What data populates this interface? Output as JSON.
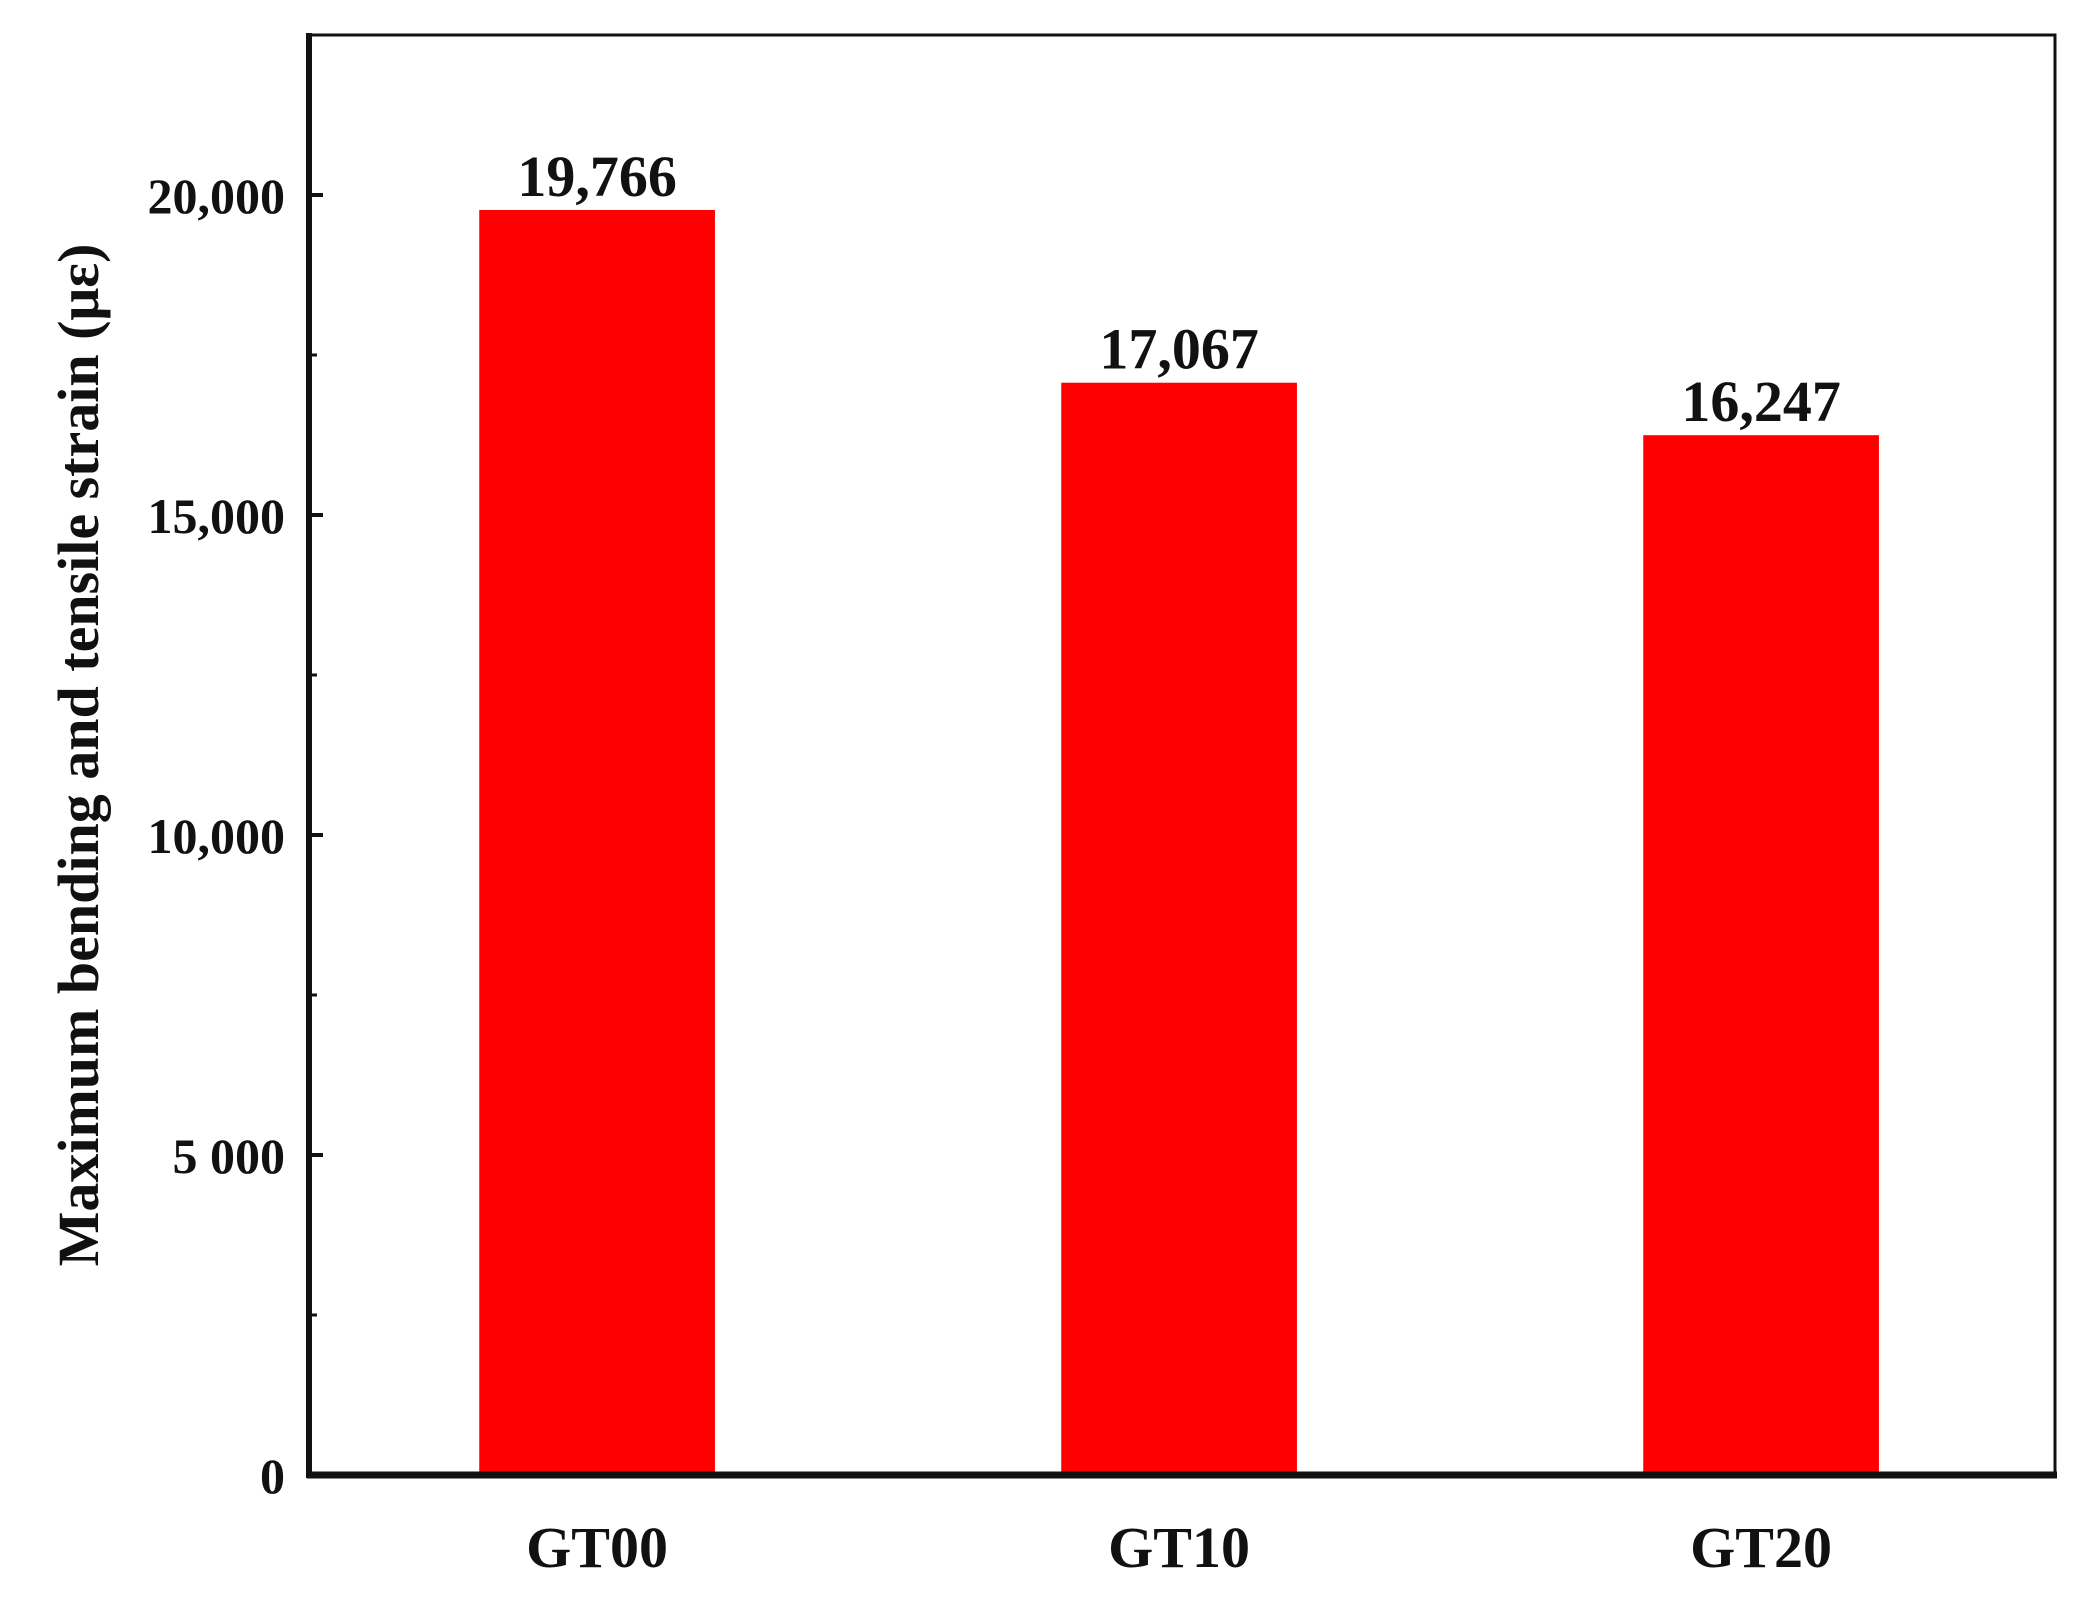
{
  "chart_data": {
    "type": "bar",
    "title": "",
    "xlabel": "",
    "ylabel": "Maximum bending and tensile strain (με)",
    "categories": [
      "GT00",
      "GT10",
      "GT20"
    ],
    "values": [
      19766,
      17067,
      16247
    ],
    "value_labels": [
      "19,766",
      "17,067",
      "16,247"
    ],
    "ylim": [
      0,
      22500
    ],
    "y_ticks": [
      {
        "value": 0,
        "label": "0"
      },
      {
        "value": 5000,
        "label": "5 000"
      },
      {
        "value": 10000,
        "label": "10,000"
      },
      {
        "value": 15000,
        "label": "15,000"
      },
      {
        "value": 20000,
        "label": "20,000"
      }
    ],
    "y_minor_ticks": [
      2500,
      7500,
      12500,
      17500
    ],
    "grid": false,
    "legend": "none",
    "bar_color": "#ff0000",
    "axis_color": "#111111"
  }
}
